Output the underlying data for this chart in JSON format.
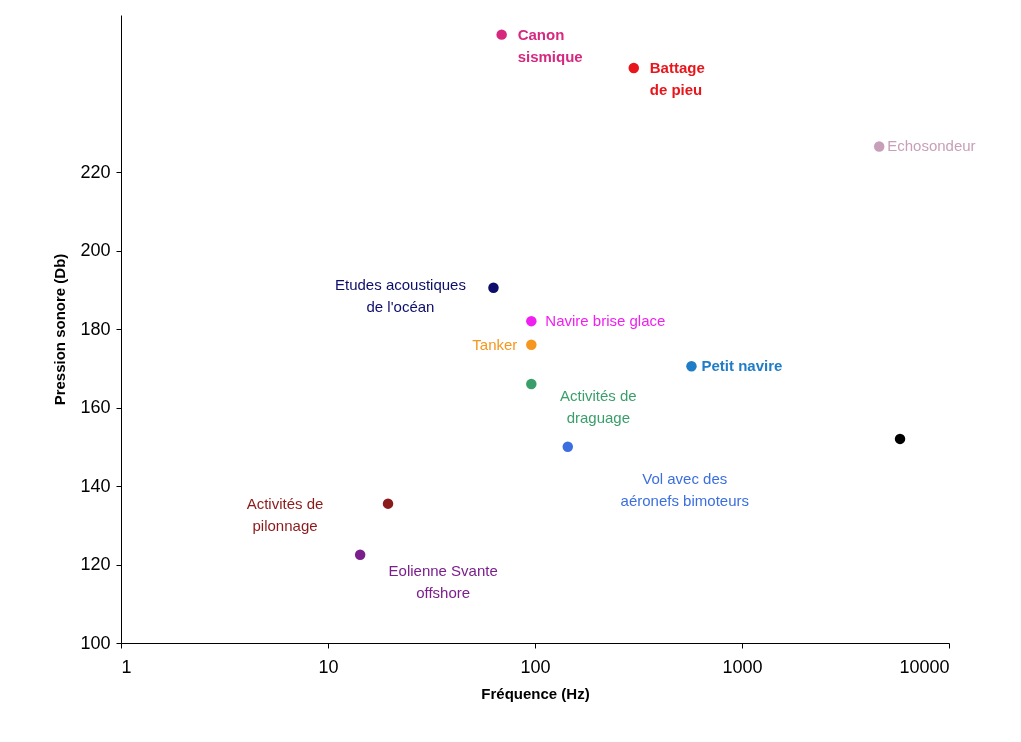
{
  "chart_data": {
    "type": "scatter",
    "xlabel": "Fréquence (Hz)",
    "ylabel": "Pression sonore (Db)",
    "log": "x",
    "grid": false,
    "marker": "circle",
    "xlim": [
      1,
      10000
    ],
    "xticks": [
      1,
      10,
      100,
      1000,
      10000
    ],
    "ylim": [
      100,
      260
    ],
    "yticks": [
      100,
      120,
      140,
      160,
      180,
      200,
      220
    ],
    "series": [
      {
        "name": "Canon\nsismique",
        "color": "#d6287f",
        "x": [
          69
        ],
        "values": [
          255
        ]
      },
      {
        "name": "Battage\nde pieu",
        "color": "#e8151b",
        "x": [
          300
        ],
        "values": [
          246.5
        ]
      },
      {
        "name": "Echosondeur",
        "color": "#c89fb8",
        "x": [
          4600
        ],
        "values": [
          226.5
        ]
      },
      {
        "name": "Etudes acoustiques\nde l'océan",
        "color": "#0d0d6b",
        "x": [
          63
        ],
        "values": [
          190.5
        ]
      },
      {
        "name": "Navire brise glace",
        "color": "#f020f0",
        "x": [
          96
        ],
        "values": [
          182
        ]
      },
      {
        "name": "Tanker",
        "color": "#f5961e",
        "x": [
          96
        ],
        "values": [
          176
        ]
      },
      {
        "name": "Activités de\ndraguage",
        "color": "#3a9e6a",
        "x": [
          96
        ],
        "values": [
          166
        ]
      },
      {
        "name": "Petit navire",
        "color": "#1f7cc6",
        "x": [
          570
        ],
        "values": [
          170.5
        ]
      },
      {
        "name": "Vol avec des\naéronefs bimoteurs",
        "color": "#3b6fe0",
        "x": [
          144
        ],
        "values": [
          150
        ]
      },
      {
        "color": "#000000",
        "x": [
          5800
        ],
        "values": [
          152
        ]
      },
      {
        "name": "Activités de\npilonnage",
        "color": "#8b1a1a",
        "x": [
          19.5
        ],
        "values": [
          135.5
        ]
      },
      {
        "name": "Eolienne Svante\noffshore",
        "color": "#7b1f8c",
        "x": [
          14.3
        ],
        "values": [
          122.5
        ]
      }
    ]
  }
}
